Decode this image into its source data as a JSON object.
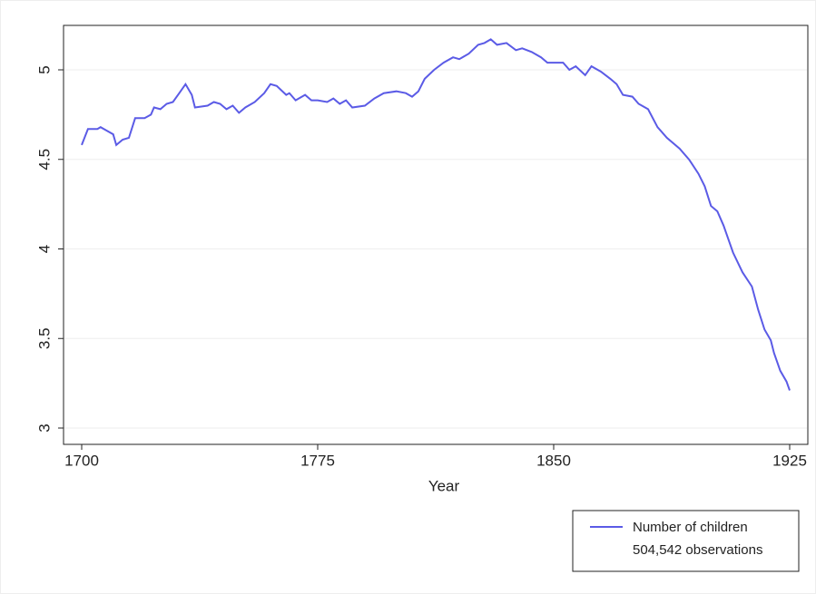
{
  "chart_data": {
    "type": "line",
    "x_label": "Year",
    "xlim": [
      1700,
      1925
    ],
    "xticks": [
      1700,
      1775,
      1850,
      1925
    ],
    "ylim": [
      3,
      5
    ],
    "yticks": [
      3,
      3.5,
      4,
      4.5,
      5
    ],
    "grid": true,
    "legend": "bottom-right",
    "legend_note": "504,542 observations",
    "x": [
      1700,
      1702,
      1705,
      1706,
      1708,
      1710,
      1711,
      1713,
      1715,
      1717,
      1720,
      1722,
      1723,
      1725,
      1727,
      1729,
      1731,
      1733,
      1735,
      1736,
      1740,
      1742,
      1744,
      1746,
      1748,
      1750,
      1752,
      1755,
      1758,
      1760,
      1762,
      1765,
      1766,
      1768,
      1771,
      1773,
      1775,
      1778,
      1780,
      1782,
      1784,
      1786,
      1790,
      1793,
      1796,
      1800,
      1803,
      1805,
      1807,
      1809,
      1812,
      1815,
      1818,
      1820,
      1823,
      1826,
      1828,
      1830,
      1832,
      1835,
      1838,
      1840,
      1843,
      1846,
      1848,
      1850,
      1853,
      1855,
      1857,
      1860,
      1862,
      1865,
      1868,
      1870,
      1872,
      1875,
      1877,
      1880,
      1883,
      1886,
      1890,
      1893,
      1896,
      1898,
      1900,
      1902,
      1904,
      1907,
      1910,
      1913,
      1915,
      1917,
      1919,
      1920,
      1922,
      1924,
      1925
    ],
    "series": [
      {
        "name": "Number of children",
        "color": "#5b5be6",
        "values": [
          4.58,
          4.67,
          4.67,
          4.68,
          4.66,
          4.64,
          4.58,
          4.61,
          4.62,
          4.73,
          4.73,
          4.75,
          4.79,
          4.78,
          4.81,
          4.82,
          4.87,
          4.92,
          4.86,
          4.79,
          4.8,
          4.82,
          4.81,
          4.78,
          4.8,
          4.76,
          4.79,
          4.82,
          4.87,
          4.92,
          4.91,
          4.86,
          4.87,
          4.83,
          4.86,
          4.83,
          4.83,
          4.82,
          4.84,
          4.81,
          4.83,
          4.79,
          4.8,
          4.84,
          4.87,
          4.88,
          4.87,
          4.85,
          4.88,
          4.95,
          5.0,
          5.04,
          5.07,
          5.06,
          5.09,
          5.14,
          5.15,
          5.17,
          5.14,
          5.15,
          5.11,
          5.12,
          5.1,
          5.07,
          5.04,
          5.04,
          5.04,
          5.0,
          5.02,
          4.97,
          5.02,
          4.99,
          4.95,
          4.92,
          4.86,
          4.85,
          4.81,
          4.78,
          4.68,
          4.62,
          4.56,
          4.5,
          4.42,
          4.35,
          4.24,
          4.21,
          4.13,
          3.98,
          3.87,
          3.79,
          3.66,
          3.55,
          3.49,
          3.42,
          3.32,
          3.26,
          3.21
        ]
      }
    ]
  }
}
